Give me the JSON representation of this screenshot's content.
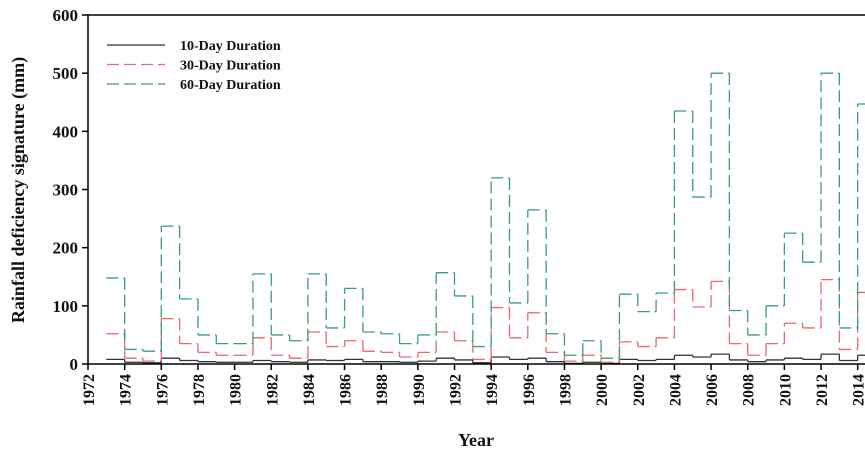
{
  "chart_data": {
    "type": "step",
    "x_label": "Year",
    "y_label": "Rainfall deficiency signature (mm)",
    "x": [
      1973,
      1974,
      1975,
      1976,
      1977,
      1978,
      1979,
      1980,
      1981,
      1982,
      1983,
      1984,
      1985,
      1986,
      1987,
      1988,
      1989,
      1990,
      1991,
      1992,
      1993,
      1994,
      1995,
      1996,
      1997,
      1998,
      1999,
      2000,
      2001,
      2002,
      2003,
      2004,
      2005,
      2006,
      2007,
      2008,
      2009,
      2010,
      2011,
      2012,
      2013,
      2014
    ],
    "series": [
      {
        "name": "10-Day Duration",
        "color": "#333333",
        "dash": false,
        "values": [
          8,
          3,
          2,
          10,
          6,
          4,
          3,
          3,
          6,
          4,
          3,
          7,
          6,
          8,
          4,
          4,
          3,
          5,
          10,
          7,
          2,
          12,
          8,
          10,
          4,
          1,
          3,
          1,
          8,
          6,
          8,
          15,
          12,
          17,
          7,
          4,
          7,
          10,
          8,
          17,
          6,
          15
        ]
      },
      {
        "name": "30-Day Duration",
        "color": "#e8696b",
        "dash": true,
        "values": [
          52,
          10,
          5,
          78,
          35,
          20,
          15,
          15,
          45,
          15,
          10,
          55,
          30,
          40,
          22,
          20,
          12,
          20,
          55,
          40,
          8,
          97,
          45,
          88,
          20,
          5,
          15,
          3,
          38,
          30,
          45,
          128,
          98,
          142,
          35,
          15,
          35,
          70,
          62,
          145,
          25,
          123
        ]
      },
      {
        "name": "60-Day Duration",
        "color": "#3a9e74",
        "dash": true,
        "values": [
          148,
          25,
          22,
          237,
          112,
          50,
          35,
          35,
          155,
          50,
          40,
          155,
          62,
          130,
          55,
          52,
          35,
          50,
          157,
          117,
          30,
          320,
          105,
          265,
          52,
          15,
          40,
          10,
          120,
          90,
          122,
          435,
          287,
          500,
          92,
          50,
          100,
          225,
          175,
          500,
          62,
          447
        ]
      }
    ],
    "xlim": [
      1972,
      2014.4
    ],
    "xticks": [
      1972,
      1974,
      1976,
      1978,
      1980,
      1982,
      1984,
      1986,
      1988,
      1990,
      1992,
      1994,
      1996,
      1998,
      2000,
      2002,
      2004,
      2006,
      2008,
      2010,
      2012,
      2014
    ],
    "ylim": [
      0,
      600
    ],
    "yticks": [
      0,
      100,
      200,
      300,
      400,
      500,
      600
    ],
    "legend": "upper-left"
  }
}
